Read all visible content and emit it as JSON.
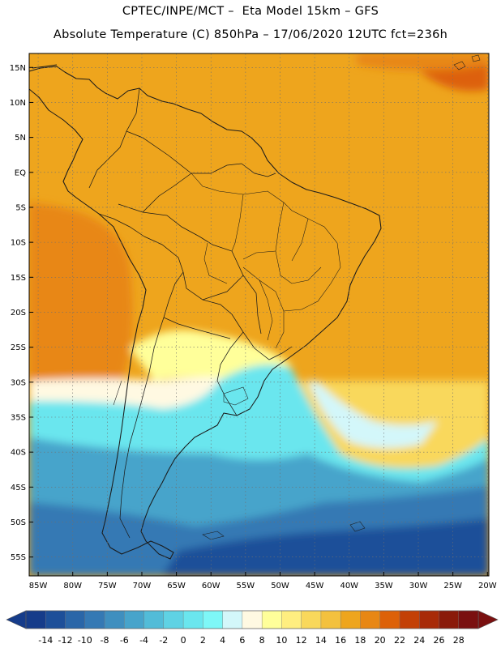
{
  "header": {
    "title_line1": "CPTEC/INPE/MCT –  Eta Model 15km – GFS",
    "title_line2": "Absolute Temperature (C) 850hPa – 17/06/2020 12UTC fct=236h"
  },
  "map": {
    "lat_labels": [
      "15N",
      "10N",
      "5N",
      "EQ",
      "5S",
      "10S",
      "15S",
      "20S",
      "25S",
      "30S",
      "35S",
      "40S",
      "45S",
      "50S",
      "55S"
    ],
    "lat_values": [
      15,
      10,
      5,
      0,
      -5,
      -10,
      -15,
      -20,
      -25,
      -30,
      -35,
      -40,
      -45,
      -50,
      -55
    ],
    "lon_labels": [
      "85W",
      "80W",
      "75W",
      "70W",
      "65W",
      "60W",
      "55W",
      "50W",
      "45W",
      "40W",
      "35W",
      "30W",
      "25W",
      "20W"
    ],
    "lon_values": [
      -85,
      -80,
      -75,
      -70,
      -65,
      -60,
      -55,
      -50,
      -45,
      -40,
      -35,
      -30,
      -25,
      -20
    ],
    "lat_range": [
      -57.7,
      17
    ],
    "lon_range": [
      -86.3,
      -19.8
    ],
    "grid": "dotted"
  },
  "legend": {
    "labels": [
      "-14",
      "-12",
      "-10",
      "-8",
      "-6",
      "-4",
      "-2",
      "0",
      "2",
      "4",
      "6",
      "8",
      "10",
      "12",
      "14",
      "16",
      "18",
      "20",
      "22",
      "24",
      "26",
      "28"
    ],
    "colors": [
      "#163c8a",
      "#1d4f99",
      "#2a66a8",
      "#3579b4",
      "#3f8fbf",
      "#47a4cb",
      "#52bcd8",
      "#5fd2e4",
      "#6ae6ee",
      "#7ef7f7",
      "#d3f7fa",
      "#fff9e2",
      "#ffff9a",
      "#ffee80",
      "#f9d85b",
      "#f3c13e",
      "#eea51d",
      "#e88714",
      "#dd6108",
      "#c34006",
      "#a82a08",
      "#8a1a0a",
      "#7a1010"
    ],
    "under_color": "#163c8a",
    "over_color": "#7a1010"
  }
}
